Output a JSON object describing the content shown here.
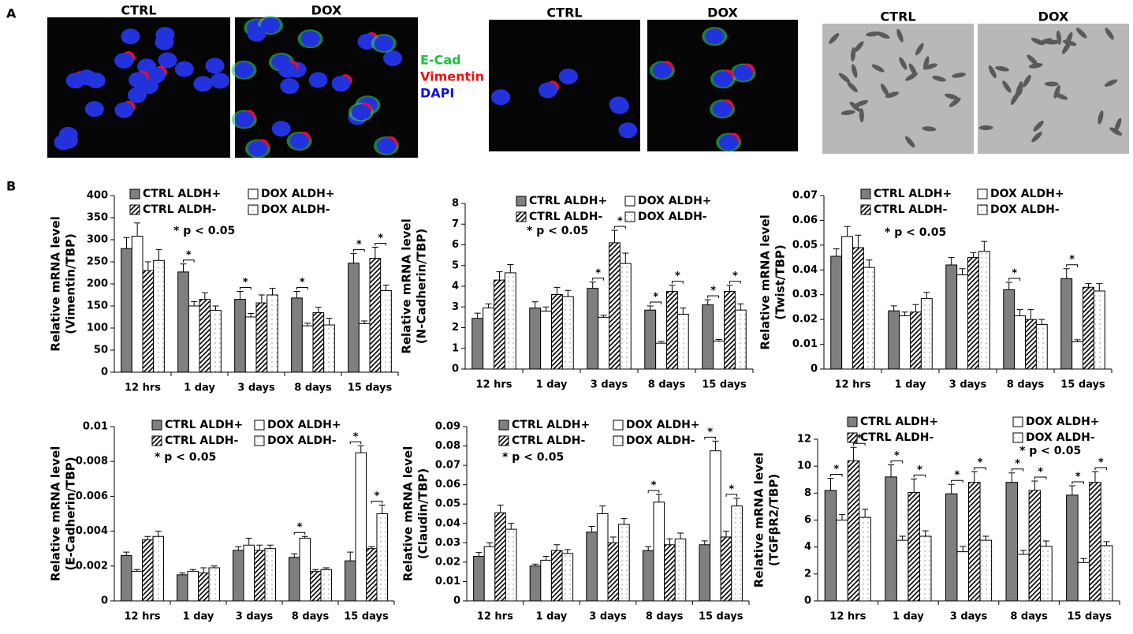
{
  "panel_a": {
    "label": "A",
    "image_titles": [
      "CTRL",
      "DOX",
      "CTRL",
      "DOX",
      "CTRL",
      "DOX"
    ],
    "stain_legend": [
      {
        "name": "E-Cad",
        "color": "#22bb44"
      },
      {
        "name": "Vimentin",
        "color": "#ee1111"
      },
      {
        "name": "DAPI",
        "color": "#1111dd"
      }
    ]
  },
  "panel_b": {
    "label": "B"
  },
  "chart_data": [
    {
      "type": "bar",
      "ylabel": [
        "Relative mRNA level",
        "(Vimentin/TBP)"
      ],
      "annotation": "* p < 0.05",
      "categories": [
        "12 hrs",
        "1 day",
        "3 days",
        "8 days",
        "15 days"
      ],
      "series": [
        {
          "name": "CTRL ALDH+",
          "color": "#7f7f7f",
          "pattern": "solid",
          "values": [
            280,
            227,
            165,
            168,
            247
          ],
          "errors": [
            25,
            18,
            18,
            15,
            22
          ]
        },
        {
          "name": "DOX ALDH+",
          "color": "#ffffff",
          "pattern": "solid",
          "values": [
            308,
            150,
            125,
            105,
            110
          ],
          "errors": [
            30,
            10,
            8,
            6,
            6
          ]
        },
        {
          "name": "CTRL ALDH-",
          "color": "#ffffff",
          "pattern": "hatch",
          "values": [
            230,
            165,
            157,
            135,
            258
          ],
          "errors": [
            20,
            15,
            18,
            12,
            25
          ]
        },
        {
          "name": "DOX ALDH-",
          "color": "#ffffff",
          "pattern": "dots",
          "values": [
            253,
            140,
            175,
            107,
            185
          ],
          "errors": [
            25,
            10,
            15,
            15,
            12
          ]
        }
      ],
      "significance": [
        {
          "category": "1 day",
          "pair": [
            "CTRL ALDH+",
            "DOX ALDH+"
          ],
          "label": "*"
        },
        {
          "category": "3 days",
          "pair": [
            "CTRL ALDH+",
            "DOX ALDH+"
          ],
          "label": "*"
        },
        {
          "category": "8 days",
          "pair": [
            "CTRL ALDH+",
            "DOX ALDH+"
          ],
          "label": "*"
        },
        {
          "category": "15 days",
          "pair": [
            "CTRL ALDH+",
            "DOX ALDH+"
          ],
          "label": "*"
        },
        {
          "category": "15 days",
          "pair": [
            "CTRL ALDH-",
            "DOX ALDH-"
          ],
          "label": "*"
        }
      ],
      "ylim": [
        0,
        400
      ],
      "yticks": [
        0,
        50,
        100,
        150,
        200,
        250,
        300,
        350,
        400
      ]
    },
    {
      "type": "bar",
      "ylabel": [
        "Relative mRNA level",
        "(N-Cadherin/TBP)"
      ],
      "annotation": "* p < 0.05",
      "categories": [
        "12 hrs",
        "1 day",
        "3 days",
        "8 days",
        "15 days"
      ],
      "series": [
        {
          "name": "CTRL ALDH+",
          "color": "#7f7f7f",
          "pattern": "solid",
          "values": [
            2.45,
            2.95,
            3.9,
            2.85,
            3.1
          ],
          "errors": [
            0.25,
            0.3,
            0.3,
            0.2,
            0.25
          ]
        },
        {
          "name": "DOX ALDH+",
          "color": "#ffffff",
          "pattern": "solid",
          "values": [
            2.95,
            2.8,
            2.5,
            1.25,
            1.35
          ],
          "errors": [
            0.2,
            0.2,
            0.1,
            0.08,
            0.08
          ]
        },
        {
          "name": "CTRL ALDH-",
          "color": "#ffffff",
          "pattern": "hatch",
          "values": [
            4.3,
            3.6,
            6.1,
            3.75,
            3.75
          ],
          "errors": [
            0.4,
            0.35,
            0.6,
            0.3,
            0.3
          ]
        },
        {
          "name": "DOX ALDH-",
          "color": "#ffffff",
          "pattern": "dots",
          "values": [
            4.65,
            3.5,
            5.1,
            2.65,
            2.85
          ],
          "errors": [
            0.4,
            0.3,
            0.5,
            0.3,
            0.3
          ]
        }
      ],
      "significance": [
        {
          "category": "3 days",
          "pair": [
            "CTRL ALDH+",
            "DOX ALDH+"
          ],
          "label": "*"
        },
        {
          "category": "3 days",
          "pair": [
            "CTRL ALDH-",
            "DOX ALDH-"
          ],
          "label": "*"
        },
        {
          "category": "8 days",
          "pair": [
            "CTRL ALDH+",
            "DOX ALDH+"
          ],
          "label": "*"
        },
        {
          "category": "8 days",
          "pair": [
            "CTRL ALDH-",
            "DOX ALDH-"
          ],
          "label": "*"
        },
        {
          "category": "15 days",
          "pair": [
            "CTRL ALDH+",
            "DOX ALDH+"
          ],
          "label": "*"
        },
        {
          "category": "15 days",
          "pair": [
            "CTRL ALDH-",
            "DOX ALDH-"
          ],
          "label": "*"
        }
      ],
      "ylim": [
        0,
        8
      ],
      "yticks": [
        0,
        1,
        2,
        3,
        4,
        5,
        6,
        7,
        8
      ]
    },
    {
      "type": "bar",
      "ylabel": [
        "Relative mRNA level",
        "(Twist/TBP)"
      ],
      "annotation": "* p < 0.05",
      "categories": [
        "12 hrs",
        "1 day",
        "3 days",
        "8 days",
        "15 days"
      ],
      "series": [
        {
          "name": "CTRL ALDH+",
          "color": "#7f7f7f",
          "pattern": "solid",
          "values": [
            0.0455,
            0.0235,
            0.042,
            0.032,
            0.0365
          ],
          "errors": [
            0.003,
            0.002,
            0.003,
            0.003,
            0.004
          ]
        },
        {
          "name": "DOX ALDH+",
          "color": "#ffffff",
          "pattern": "solid",
          "values": [
            0.0535,
            0.0215,
            0.038,
            0.0215,
            0.011
          ],
          "errors": [
            0.004,
            0.0015,
            0.0025,
            0.0025,
            0.0008
          ]
        },
        {
          "name": "CTRL ALDH-",
          "color": "#ffffff",
          "pattern": "hatch",
          "values": [
            0.049,
            0.023,
            0.045,
            0.02,
            0.033
          ],
          "errors": [
            0.005,
            0.003,
            0.002,
            0.004,
            0.0015
          ]
        },
        {
          "name": "DOX ALDH-",
          "color": "#ffffff",
          "pattern": "dots",
          "values": [
            0.041,
            0.0285,
            0.0475,
            0.018,
            0.0315
          ],
          "errors": [
            0.003,
            0.0025,
            0.004,
            0.002,
            0.003
          ]
        }
      ],
      "significance": [
        {
          "category": "8 days",
          "pair": [
            "CTRL ALDH+",
            "DOX ALDH+"
          ],
          "label": "*"
        },
        {
          "category": "15 days",
          "pair": [
            "CTRL ALDH+",
            "DOX ALDH+"
          ],
          "label": "*"
        }
      ],
      "ylim": [
        0,
        0.07
      ],
      "yticks": [
        0,
        0.01,
        0.02,
        0.03,
        0.04,
        0.05,
        0.06,
        0.07
      ]
    },
    {
      "type": "bar",
      "ylabel": [
        "Relative mRNA level",
        "(E-Cadherin/TBP)"
      ],
      "annotation": "* p < 0.05",
      "categories": [
        "12 hrs",
        "1 day",
        "3 days",
        "8 days",
        "15 days"
      ],
      "series": [
        {
          "name": "CTRL ALDH+",
          "color": "#7f7f7f",
          "pattern": "solid",
          "values": [
            0.0026,
            0.0015,
            0.0029,
            0.0025,
            0.0023
          ],
          "errors": [
            0.0002,
            0.0001,
            0.0002,
            0.0002,
            0.0005
          ]
        },
        {
          "name": "DOX ALDH+",
          "color": "#ffffff",
          "pattern": "solid",
          "values": [
            0.0017,
            0.0017,
            0.0032,
            0.0036,
            0.0085
          ],
          "errors": [
            0.0001,
            0.0001,
            0.0004,
            0.0001,
            0.0004
          ]
        },
        {
          "name": "CTRL ALDH-",
          "color": "#ffffff",
          "pattern": "hatch",
          "values": [
            0.0035,
            0.0016,
            0.0029,
            0.0017,
            0.003
          ],
          "errors": [
            0.0002,
            0.0003,
            0.0003,
            0.0001,
            0.0001
          ]
        },
        {
          "name": "DOX ALDH-",
          "color": "#ffffff",
          "pattern": "dots",
          "values": [
            0.0037,
            0.0019,
            0.003,
            0.0018,
            0.005
          ],
          "errors": [
            0.0003,
            0.0001,
            0.0002,
            0.0001,
            0.0005
          ]
        }
      ],
      "significance": [
        {
          "category": "8 days",
          "pair": [
            "CTRL ALDH+",
            "DOX ALDH+"
          ],
          "label": "*"
        },
        {
          "category": "15 days",
          "pair": [
            "CTRL ALDH+",
            "DOX ALDH+"
          ],
          "label": "*"
        },
        {
          "category": "15 days",
          "pair": [
            "CTRL ALDH-",
            "DOX ALDH-"
          ],
          "label": "*"
        }
      ],
      "ylim": [
        0,
        0.01
      ],
      "yticks": [
        0,
        0.002,
        0.004,
        0.006,
        0.008,
        0.01
      ]
    },
    {
      "type": "bar",
      "ylabel": [
        "Relative mRNA level",
        "(Claudin/TBP)"
      ],
      "annotation": "* p < 0.05",
      "categories": [
        "12 hrs",
        "1 day",
        "3 days",
        "8 days",
        "15 days"
      ],
      "series": [
        {
          "name": "CTRL ALDH+",
          "color": "#7f7f7f",
          "pattern": "solid",
          "values": [
            0.023,
            0.018,
            0.0355,
            0.026,
            0.029
          ],
          "errors": [
            0.002,
            0.001,
            0.003,
            0.002,
            0.002
          ]
        },
        {
          "name": "DOX ALDH+",
          "color": "#ffffff",
          "pattern": "solid",
          "values": [
            0.028,
            0.021,
            0.045,
            0.051,
            0.0775
          ],
          "errors": [
            0.002,
            0.002,
            0.004,
            0.004,
            0.005
          ]
        },
        {
          "name": "CTRL ALDH-",
          "color": "#ffffff",
          "pattern": "hatch",
          "values": [
            0.0455,
            0.026,
            0.03,
            0.029,
            0.033
          ],
          "errors": [
            0.004,
            0.003,
            0.003,
            0.003,
            0.003
          ]
        },
        {
          "name": "DOX ALDH-",
          "color": "#ffffff",
          "pattern": "dots",
          "values": [
            0.037,
            0.0245,
            0.0395,
            0.032,
            0.049
          ],
          "errors": [
            0.003,
            0.002,
            0.003,
            0.003,
            0.004
          ]
        }
      ],
      "significance": [
        {
          "category": "8 days",
          "pair": [
            "CTRL ALDH+",
            "DOX ALDH+"
          ],
          "label": "*"
        },
        {
          "category": "15 days",
          "pair": [
            "CTRL ALDH+",
            "DOX ALDH+"
          ],
          "label": "*"
        },
        {
          "category": "15 days",
          "pair": [
            "CTRL ALDH-",
            "DOX ALDH-"
          ],
          "label": "*"
        }
      ],
      "ylim": [
        0,
        0.09
      ],
      "yticks": [
        0,
        0.01,
        0.02,
        0.03,
        0.04,
        0.05,
        0.06,
        0.07,
        0.08,
        0.09
      ]
    },
    {
      "type": "bar",
      "ylabel": [
        "Relative mRNA level",
        "(TGFβR2/TBP)"
      ],
      "annotation": "* p < 0.05",
      "categories": [
        "12 hrs",
        "1 day",
        "3 days",
        "8 days",
        "15 days"
      ],
      "series": [
        {
          "name": "CTRL ALDH+",
          "color": "#7f7f7f",
          "pattern": "solid",
          "values": [
            8.2,
            9.2,
            7.95,
            8.8,
            7.85
          ],
          "errors": [
            0.9,
            0.9,
            0.7,
            0.7,
            0.7
          ]
        },
        {
          "name": "DOX ALDH+",
          "color": "#ffffff",
          "pattern": "solid",
          "values": [
            6.0,
            4.5,
            3.65,
            3.45,
            2.85
          ],
          "errors": [
            0.4,
            0.3,
            0.4,
            0.3,
            0.3
          ]
        },
        {
          "name": "CTRL ALDH-",
          "color": "#ffffff",
          "pattern": "hatch",
          "values": [
            10.4,
            8.05,
            8.8,
            8.2,
            8.8
          ],
          "errors": [
            1.0,
            1.0,
            0.8,
            0.7,
            0.8
          ]
        },
        {
          "name": "DOX ALDH-",
          "color": "#ffffff",
          "pattern": "dots",
          "values": [
            6.2,
            4.8,
            4.5,
            4.05,
            4.1
          ],
          "errors": [
            0.6,
            0.4,
            0.3,
            0.4,
            0.3
          ]
        }
      ],
      "significance": [
        {
          "category": "12 hrs",
          "pair": [
            "CTRL ALDH+",
            "DOX ALDH+"
          ],
          "label": "*"
        },
        {
          "category": "12 hrs",
          "pair": [
            "CTRL ALDH-",
            "DOX ALDH-"
          ],
          "label": "*"
        },
        {
          "category": "1 day",
          "pair": [
            "CTRL ALDH+",
            "DOX ALDH+"
          ],
          "label": "*"
        },
        {
          "category": "1 day",
          "pair": [
            "CTRL ALDH-",
            "DOX ALDH-"
          ],
          "label": "*"
        },
        {
          "category": "3 days",
          "pair": [
            "CTRL ALDH+",
            "DOX ALDH+"
          ],
          "label": "*"
        },
        {
          "category": "3 days",
          "pair": [
            "CTRL ALDH-",
            "DOX ALDH-"
          ],
          "label": "*"
        },
        {
          "category": "8 days",
          "pair": [
            "CTRL ALDH+",
            "DOX ALDH+"
          ],
          "label": "*"
        },
        {
          "category": "8 days",
          "pair": [
            "CTRL ALDH-",
            "DOX ALDH-"
          ],
          "label": "*"
        },
        {
          "category": "15 days",
          "pair": [
            "CTRL ALDH+",
            "DOX ALDH+"
          ],
          "label": "*"
        },
        {
          "category": "15 days",
          "pair": [
            "CTRL ALDH-",
            "DOX ALDH-"
          ],
          "label": "*"
        }
      ],
      "ylim": [
        0,
        12
      ],
      "yticks": [
        0,
        2,
        4,
        6,
        8,
        10,
        12
      ]
    }
  ]
}
